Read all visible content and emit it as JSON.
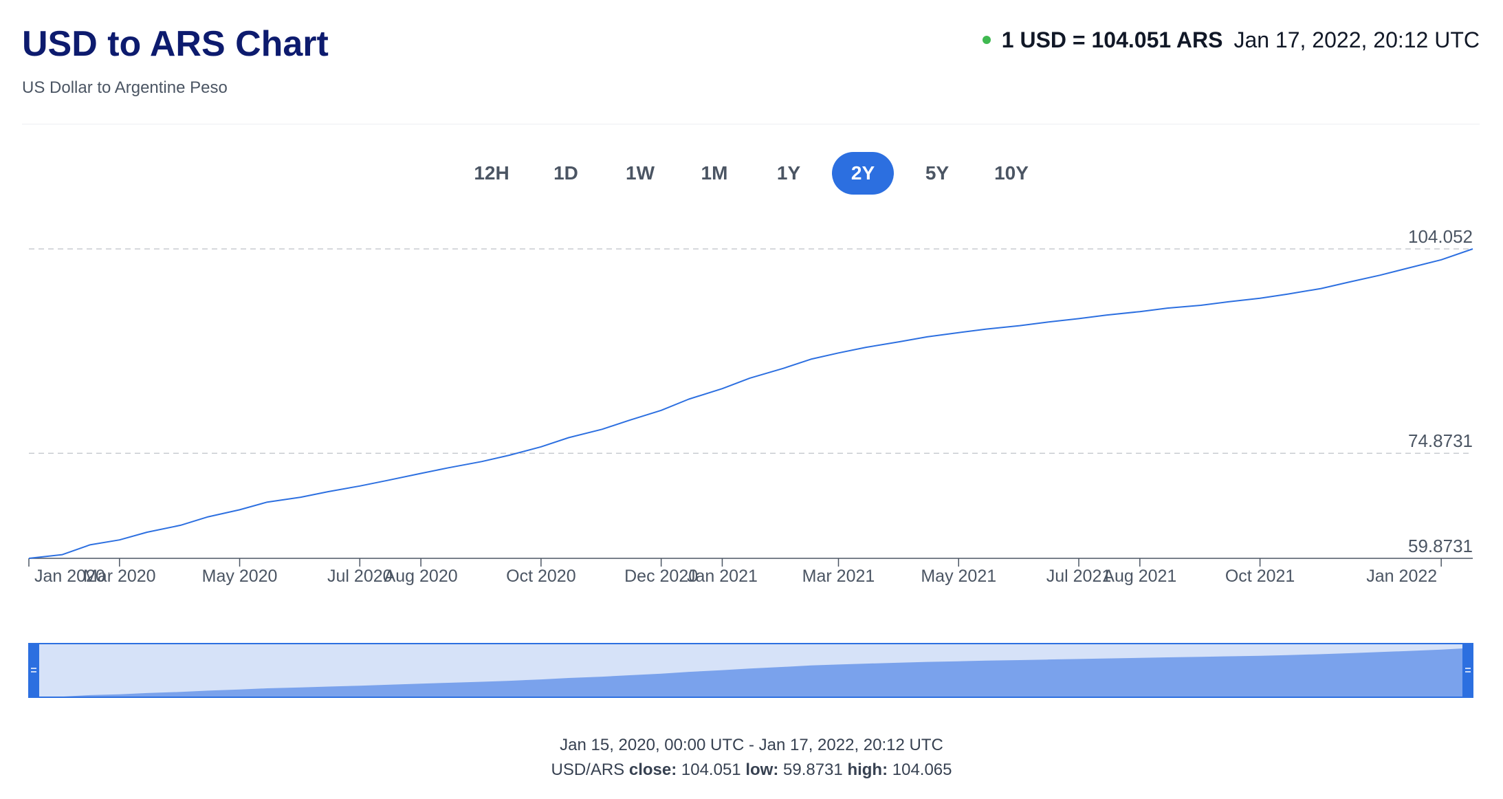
{
  "header": {
    "title": "USD to ARS Chart",
    "subtitle": "US Dollar to Argentine Peso",
    "rate": "1 USD = 104.051 ARS",
    "timestamp": "Jan 17, 2022, 20:12 UTC",
    "status_color": "#3fb950"
  },
  "range_tabs": {
    "items": [
      "12H",
      "1D",
      "1W",
      "1M",
      "1Y",
      "2Y",
      "5Y",
      "10Y"
    ],
    "active": "2Y"
  },
  "footer": {
    "range": "Jan 15, 2020, 00:00 UTC - Jan 17, 2022, 20:12 UTC",
    "pair": "USD/ARS",
    "close_label": "close:",
    "close_value": "104.051",
    "low_label": "low:",
    "low_value": "59.8731",
    "high_label": "high:",
    "high_value": "104.065"
  },
  "colors": {
    "line": "#2c6fe0",
    "navigator_area": "#7aa2ec",
    "navigator_background": "#d6e2f8",
    "navigator_handle": "#2c6fe0"
  },
  "chart_data": {
    "type": "line",
    "series": [
      {
        "name": "USD/ARS",
        "x": [
          "2020-01-15",
          "2020-02-01",
          "2020-02-15",
          "2020-03-01",
          "2020-03-15",
          "2020-04-01",
          "2020-04-15",
          "2020-05-01",
          "2020-05-15",
          "2020-06-01",
          "2020-06-15",
          "2020-07-01",
          "2020-07-15",
          "2020-08-01",
          "2020-08-15",
          "2020-09-01",
          "2020-09-15",
          "2020-10-01",
          "2020-10-15",
          "2020-11-01",
          "2020-11-15",
          "2020-12-01",
          "2020-12-15",
          "2021-01-01",
          "2021-01-15",
          "2021-02-01",
          "2021-02-15",
          "2021-03-01",
          "2021-03-15",
          "2021-04-01",
          "2021-04-15",
          "2021-05-01",
          "2021-05-15",
          "2021-06-01",
          "2021-06-15",
          "2021-07-01",
          "2021-07-15",
          "2021-08-01",
          "2021-08-15",
          "2021-09-01",
          "2021-09-15",
          "2021-10-01",
          "2021-10-15",
          "2021-11-01",
          "2021-11-15",
          "2021-12-01",
          "2021-12-15",
          "2022-01-01",
          "2022-01-17"
        ],
        "values": [
          59.87,
          60.4,
          61.8,
          62.5,
          63.6,
          64.6,
          65.8,
          66.8,
          67.9,
          68.6,
          69.4,
          70.2,
          71.0,
          72.0,
          72.8,
          73.7,
          74.6,
          75.8,
          77.1,
          78.3,
          79.6,
          81.0,
          82.6,
          84.1,
          85.6,
          87.0,
          88.3,
          89.2,
          90.0,
          90.8,
          91.5,
          92.1,
          92.6,
          93.1,
          93.6,
          94.1,
          94.6,
          95.1,
          95.6,
          96.0,
          96.5,
          97.0,
          97.6,
          98.4,
          99.3,
          100.3,
          101.3,
          102.5,
          104.05
        ]
      }
    ],
    "x_ticks": [
      "Jan 2020",
      "Mar 2020",
      "May 2020",
      "Jul 2020",
      "Aug 2020",
      "Oct 2020",
      "Dec 2020",
      "Jan 2021",
      "Mar 2021",
      "May 2021",
      "Jul 2021",
      "Aug 2021",
      "Oct 2021",
      "Jan 2022"
    ],
    "y_ticks": [
      "59.8731",
      "74.8731",
      "104.052"
    ],
    "ylim": [
      59.8731,
      104.052
    ],
    "grid": true,
    "legend": "none"
  }
}
